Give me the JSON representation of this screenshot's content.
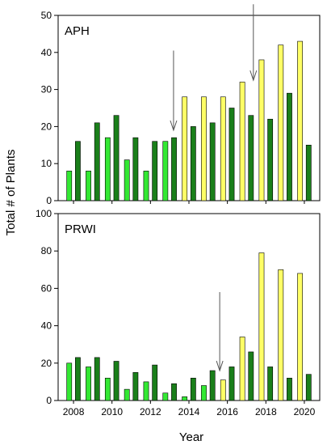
{
  "colors": {
    "light_bar": "#33e833",
    "yellow_bar": "#ffff66",
    "dark_bar": "#1a7f1a",
    "axis": "#000000",
    "arrow": "#555555"
  },
  "chart_data": [
    {
      "type": "bar",
      "panel_label": "APH",
      "xlabel": "Year",
      "ylabel": "Total # of Plants",
      "ylim": [
        0,
        50
      ],
      "yticks": [
        0,
        10,
        20,
        30,
        40,
        50
      ],
      "xticks": [
        2008,
        2010,
        2012,
        2014,
        2016,
        2018,
        2020
      ],
      "x": [
        2008,
        2009,
        2010,
        2011,
        2012,
        2013,
        2014,
        2015,
        2016,
        2017,
        2018,
        2019,
        2020
      ],
      "series": [
        {
          "color_key": "first_bar",
          "values": [
            8,
            8,
            17,
            11,
            8,
            16,
            28,
            28,
            28,
            32,
            38,
            42,
            43
          ],
          "colors": [
            "light",
            "light",
            "light",
            "light",
            "light",
            "light",
            "yellow",
            "yellow",
            "yellow",
            "yellow",
            "yellow",
            "yellow",
            "yellow"
          ]
        },
        {
          "color_key": "second_bar",
          "values": [
            16,
            21,
            23,
            17,
            16,
            17,
            20,
            21,
            25,
            23,
            22,
            29,
            15
          ],
          "colors": [
            "dark",
            "dark",
            "dark",
            "dark",
            "dark",
            "dark",
            "dark",
            "dark",
            "dark",
            "dark",
            "dark",
            "dark",
            "dark"
          ]
        }
      ],
      "arrows": [
        {
          "x": 2013.2,
          "y_top": 40.5,
          "y_tip": 19
        },
        {
          "x": 2017.35,
          "y_top": 53,
          "y_tip": 32.5
        }
      ],
      "grid": false
    },
    {
      "type": "bar",
      "panel_label": "PRWI",
      "xlabel": "Year",
      "ylabel": "Total # of Plants",
      "ylim": [
        0,
        100
      ],
      "yticks": [
        0,
        20,
        40,
        60,
        80,
        100
      ],
      "xticks": [
        2008,
        2010,
        2012,
        2014,
        2016,
        2018,
        2020
      ],
      "x": [
        2008,
        2009,
        2010,
        2011,
        2012,
        2013,
        2014,
        2015,
        2016,
        2017,
        2018,
        2019,
        2020
      ],
      "series": [
        {
          "color_key": "first_bar",
          "values": [
            20,
            18,
            12,
            6,
            10,
            4,
            2,
            8,
            11,
            34,
            79,
            70,
            68
          ],
          "colors": [
            "light",
            "light",
            "light",
            "light",
            "light",
            "light",
            "light",
            "light",
            "yellow",
            "yellow",
            "yellow",
            "yellow",
            "yellow"
          ]
        },
        {
          "color_key": "second_bar",
          "values": [
            23,
            23,
            21,
            15,
            19,
            9,
            12,
            16,
            18,
            26,
            18,
            12,
            14
          ],
          "colors": [
            "dark",
            "dark",
            "dark",
            "dark",
            "dark",
            "dark",
            "dark",
            "dark",
            "dark",
            "dark",
            "dark",
            "dark",
            "dark"
          ]
        }
      ],
      "arrows": [
        {
          "x": 2015.6,
          "y_top": 58,
          "y_tip": 16
        }
      ],
      "grid": false
    }
  ]
}
